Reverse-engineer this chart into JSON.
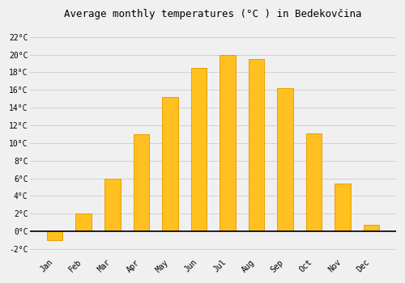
{
  "months": [
    "Jan",
    "Feb",
    "Mar",
    "Apr",
    "May",
    "Jun",
    "Jul",
    "Aug",
    "Sep",
    "Oct",
    "Nov",
    "Dec"
  ],
  "temperatures": [
    -1.0,
    2.0,
    6.0,
    11.0,
    15.2,
    18.5,
    20.0,
    19.5,
    16.2,
    11.1,
    5.4,
    0.7
  ],
  "bar_color": "#FFC020",
  "bar_edge_color": "#E8A000",
  "title": "Average monthly temperatures (°C ) in Bedekovčina",
  "ylim": [
    -2.8,
    23.5
  ],
  "yticks": [
    -2,
    0,
    2,
    4,
    6,
    8,
    10,
    12,
    14,
    16,
    18,
    20,
    22
  ],
  "background_color": "#f0f0f0",
  "grid_color": "#cccccc",
  "title_fontsize": 9,
  "tick_fontsize": 7,
  "bar_width": 0.55
}
